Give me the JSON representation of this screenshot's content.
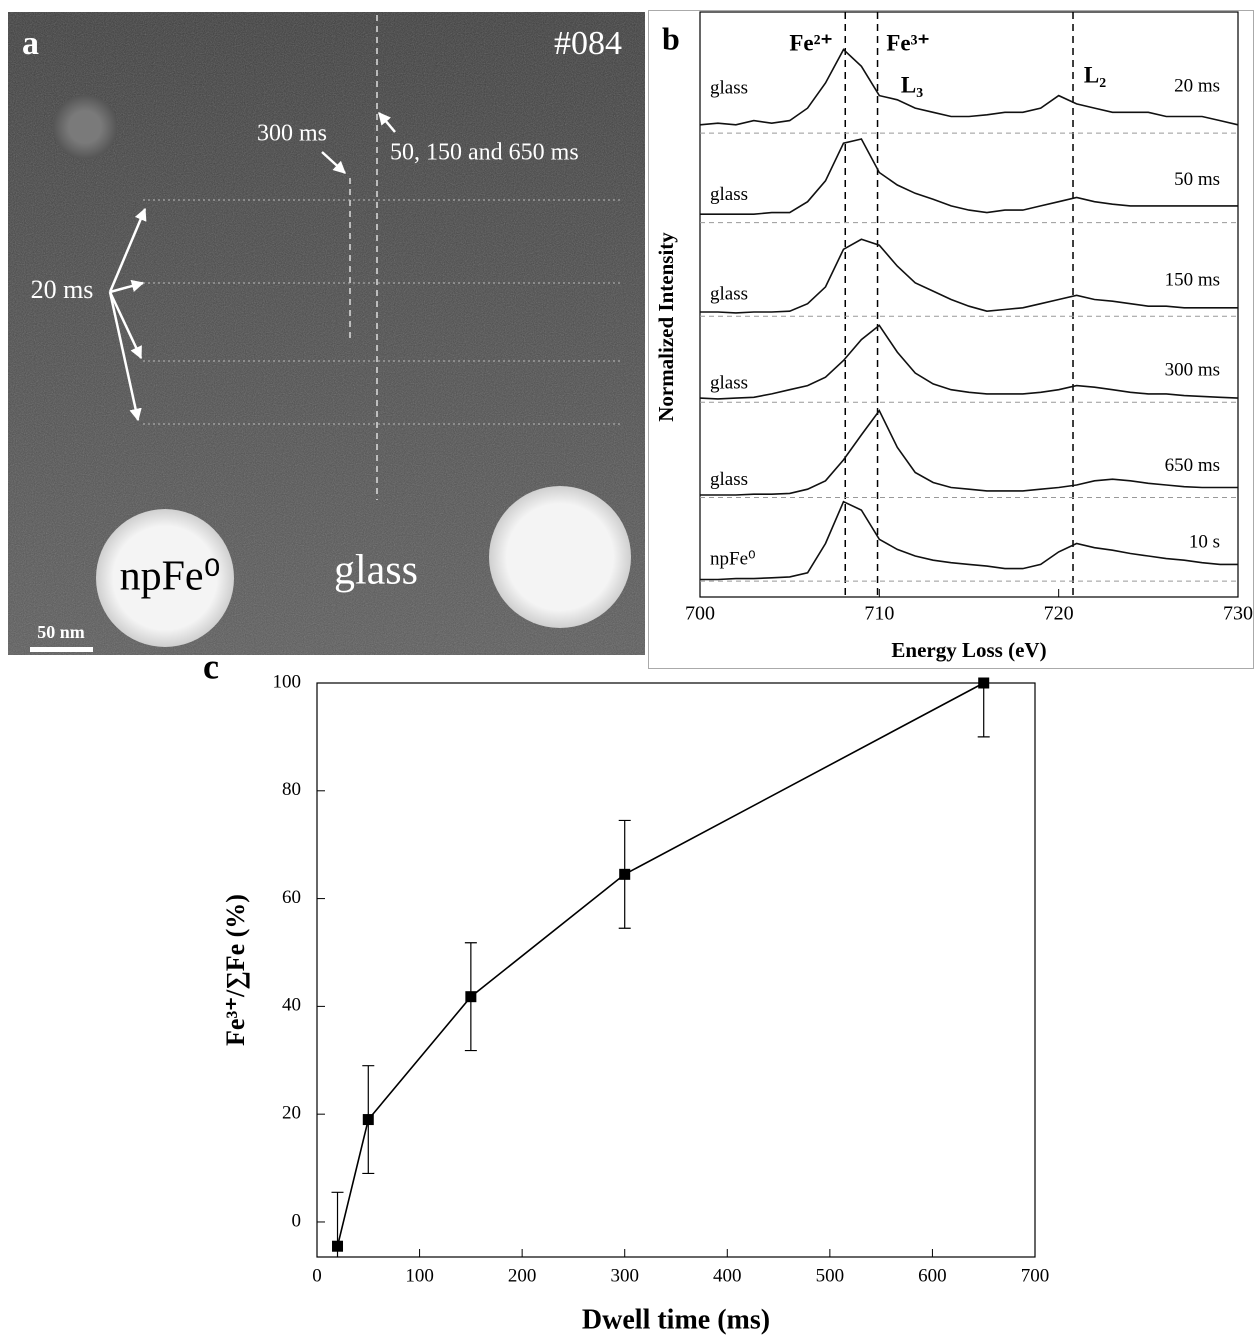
{
  "micrograph": {
    "label": "a",
    "id": "#084",
    "annotations": [
      "300 ms",
      "50, 150 and 650 ms",
      "20 ms"
    ],
    "regions": [
      "npFe⁰",
      "glass"
    ],
    "scale_bar": "50 nm"
  },
  "chart_data": [
    {
      "type": "line",
      "label": "b",
      "xlabel": "Energy Loss (eV)",
      "ylabel": "Normalized Intensity",
      "xlim": [
        700,
        730
      ],
      "xticks": [
        700,
        710,
        720,
        730
      ],
      "ylim": [
        0,
        7
      ],
      "markers": [
        708.1,
        709.9,
        720.8
      ],
      "annotations": [
        "Fe²⁺",
        "Fe³⁺",
        "L₃",
        "L₂"
      ],
      "x": [
        700,
        701,
        702,
        703,
        704,
        705,
        706,
        707,
        708,
        709,
        710,
        711,
        712,
        713,
        714,
        715,
        716,
        717,
        718,
        719,
        720,
        721,
        722,
        723,
        724,
        725,
        726,
        727,
        728,
        729,
        730
      ],
      "series": [
        {
          "name": "20 ms",
          "sample": "glass",
          "baseline": 5.55,
          "color": "#111111",
          "values": [
            0.1,
            0.12,
            0.1,
            0.15,
            0.12,
            0.15,
            0.3,
            0.6,
            1.0,
            0.8,
            0.45,
            0.4,
            0.3,
            0.25,
            0.2,
            0.2,
            0.22,
            0.25,
            0.25,
            0.3,
            0.45,
            0.35,
            0.3,
            0.25,
            0.25,
            0.25,
            0.2,
            0.2,
            0.2,
            0.15,
            0.1
          ]
        },
        {
          "name": "50 ms",
          "sample": "glass",
          "baseline": 4.48,
          "color": "#111111",
          "values": [
            0.1,
            0.1,
            0.1,
            0.1,
            0.12,
            0.12,
            0.25,
            0.5,
            0.95,
            1.0,
            0.6,
            0.45,
            0.35,
            0.28,
            0.2,
            0.15,
            0.12,
            0.15,
            0.15,
            0.2,
            0.25,
            0.3,
            0.25,
            0.22,
            0.2,
            0.2,
            0.2,
            0.2,
            0.2,
            0.2,
            0.2
          ]
        },
        {
          "name": "150 ms",
          "sample": "glass",
          "baseline": 3.36,
          "color": "#111111",
          "values": [
            0.05,
            0.05,
            0.04,
            0.05,
            0.05,
            0.06,
            0.15,
            0.35,
            0.8,
            0.92,
            0.85,
            0.6,
            0.4,
            0.3,
            0.2,
            0.12,
            0.06,
            0.08,
            0.1,
            0.15,
            0.2,
            0.25,
            0.2,
            0.18,
            0.15,
            0.12,
            0.12,
            0.1,
            0.1,
            0.1,
            0.1
          ]
        },
        {
          "name": "300 ms",
          "sample": "glass",
          "baseline": 2.33,
          "color": "#111111",
          "values": [
            0.05,
            0.04,
            0.05,
            0.06,
            0.1,
            0.15,
            0.2,
            0.3,
            0.5,
            0.75,
            0.92,
            0.6,
            0.35,
            0.22,
            0.15,
            0.12,
            0.1,
            0.1,
            0.1,
            0.12,
            0.15,
            0.2,
            0.18,
            0.15,
            0.12,
            0.1,
            0.1,
            0.08,
            0.07,
            0.06,
            0.05
          ]
        },
        {
          "name": "650 ms",
          "sample": "glass",
          "baseline": 1.19,
          "color": "#111111",
          "values": [
            0.03,
            0.03,
            0.03,
            0.04,
            0.04,
            0.05,
            0.1,
            0.2,
            0.45,
            0.75,
            1.04,
            0.6,
            0.3,
            0.18,
            0.12,
            0.1,
            0.08,
            0.08,
            0.08,
            0.1,
            0.12,
            0.15,
            0.2,
            0.22,
            0.2,
            0.17,
            0.15,
            0.13,
            0.12,
            0.12,
            0.12
          ]
        },
        {
          "name": "10 s",
          "sample": "npFe⁰",
          "baseline": 0.19,
          "color": "#111111",
          "values": [
            0.02,
            0.02,
            0.03,
            0.03,
            0.04,
            0.05,
            0.1,
            0.45,
            0.95,
            0.85,
            0.5,
            0.38,
            0.3,
            0.25,
            0.22,
            0.2,
            0.18,
            0.15,
            0.15,
            0.2,
            0.35,
            0.45,
            0.4,
            0.37,
            0.33,
            0.3,
            0.27,
            0.25,
            0.22,
            0.2,
            0.2
          ]
        }
      ]
    },
    {
      "type": "errorbar",
      "label": "c",
      "xlabel": "Dwell time (ms)",
      "ylabel": "Fe³⁺/∑Fe (%)",
      "xlim": [
        0,
        700
      ],
      "xticks": [
        0,
        100,
        200,
        300,
        400,
        500,
        600,
        700
      ],
      "ylim": [
        -6.5,
        100
      ],
      "yticks": [
        0,
        20,
        40,
        60,
        80,
        100
      ],
      "color": "#000000",
      "x": [
        20,
        50,
        150,
        300,
        650
      ],
      "values": [
        -4.5,
        19,
        41.8,
        64.5,
        100
      ],
      "errors": [
        10,
        10,
        10,
        10,
        10
      ]
    }
  ]
}
